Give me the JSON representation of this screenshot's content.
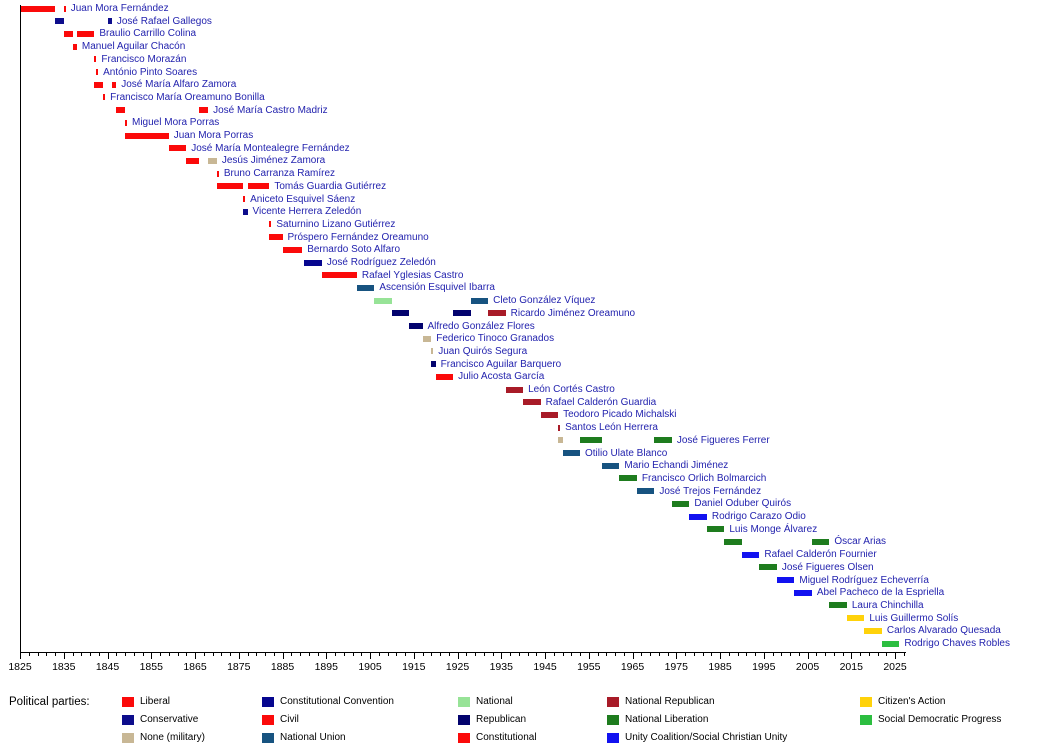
{
  "legend": {
    "title": "Political parties:",
    "columns": [
      [
        "liberal",
        "conservative",
        "none_military"
      ],
      [
        "constitutional_convention",
        "civil",
        "national_union"
      ],
      [
        "national",
        "republican",
        "constitutional"
      ],
      [
        "national_republican",
        "national_liberation",
        "unity_social_christian"
      ],
      [
        "citizens_action",
        "social_democratic_progress"
      ]
    ]
  },
  "parties": {
    "liberal": {
      "label": "Liberal",
      "color": "#fb0a0a"
    },
    "conservative": {
      "label": "Conservative",
      "color": "#0d0d8c"
    },
    "none_military": {
      "label": "None (military)",
      "color": "#c8b795"
    },
    "constitutional_convention": {
      "label": "Constitutional Convention",
      "color": "#06068f"
    },
    "civil": {
      "label": "Civil",
      "color": "#fb0a0a"
    },
    "national_union": {
      "label": "National Union",
      "color": "#175380"
    },
    "national": {
      "label": "National",
      "color": "#97e397"
    },
    "republican": {
      "label": "Republican",
      "color": "#03036e"
    },
    "constitutional": {
      "label": "Constitutional",
      "color": "#fb0a0a"
    },
    "national_republican": {
      "label": "National Republican",
      "color": "#a81b28"
    },
    "national_liberation": {
      "label": "National Liberation",
      "color": "#1e7c1e"
    },
    "unity_social_christian": {
      "label": "Unity Coalition/Social Christian Unity",
      "color": "#1212f0"
    },
    "citizens_action": {
      "label": "Citizen's Action",
      "color": "#ffd20a"
    },
    "social_democratic_progress": {
      "label": "Social Democratic Progress",
      "color": "#2cbe40"
    }
  },
  "chart_data": {
    "type": "timeline",
    "title": "",
    "xlabel": "",
    "axis": {
      "min": 1825,
      "max": 2027,
      "major_step": 10,
      "minor_step": 2
    },
    "tick_labels": [
      "1825",
      "1835",
      "1845",
      "1855",
      "1865",
      "1875",
      "1885",
      "1895",
      "1905",
      "1915",
      "1925",
      "1935",
      "1945",
      "1955",
      "1965",
      "1975",
      "1985",
      "1995",
      "2005",
      "2015",
      "2025"
    ],
    "rows": [
      {
        "name": "Juan Mora Fernández",
        "terms": [
          {
            "party": "liberal",
            "from": 1825,
            "to": 1833
          },
          {
            "party": "liberal",
            "from": 1835,
            "to": 1835.4
          }
        ]
      },
      {
        "name": "José Rafael Gallegos",
        "terms": [
          {
            "party": "conservative",
            "from": 1833,
            "to": 1835
          },
          {
            "party": "conservative",
            "from": 1845,
            "to": 1846
          }
        ]
      },
      {
        "name": "Braulio Carrillo Colina",
        "terms": [
          {
            "party": "liberal",
            "from": 1835,
            "to": 1837
          },
          {
            "party": "liberal",
            "from": 1838,
            "to": 1842
          }
        ]
      },
      {
        "name": "Manuel Aguilar Chacón",
        "terms": [
          {
            "party": "liberal",
            "from": 1837,
            "to": 1838
          }
        ]
      },
      {
        "name": "Francisco Morazán",
        "terms": [
          {
            "party": "liberal",
            "from": 1842,
            "to": 1842.4
          }
        ]
      },
      {
        "name": "António Pinto Soares",
        "terms": [
          {
            "party": "liberal",
            "from": 1842.4,
            "to": 1842.8
          }
        ]
      },
      {
        "name": "José María Alfaro Zamora",
        "terms": [
          {
            "party": "liberal",
            "from": 1842,
            "to": 1844
          },
          {
            "party": "liberal",
            "from": 1846,
            "to": 1847
          }
        ]
      },
      {
        "name": "Francisco María Oreamuno Bonilla",
        "terms": [
          {
            "party": "liberal",
            "from": 1844,
            "to": 1844.4
          }
        ]
      },
      {
        "name": "José María Castro Madriz",
        "terms": [
          {
            "party": "liberal",
            "from": 1847,
            "to": 1849
          },
          {
            "party": "liberal",
            "from": 1866,
            "to": 1868
          }
        ]
      },
      {
        "name": "Miguel Mora Porras",
        "terms": [
          {
            "party": "liberal",
            "from": 1849,
            "to": 1849.4
          }
        ]
      },
      {
        "name": "Juan Mora Porras",
        "terms": [
          {
            "party": "liberal",
            "from": 1849,
            "to": 1859
          }
        ]
      },
      {
        "name": "José María Montealegre Fernández",
        "terms": [
          {
            "party": "liberal",
            "from": 1859,
            "to": 1863
          }
        ]
      },
      {
        "name": "Jesús Jiménez Zamora",
        "terms": [
          {
            "party": "liberal",
            "from": 1863,
            "to": 1866
          },
          {
            "party": "none_military",
            "from": 1868,
            "to": 1870
          }
        ]
      },
      {
        "name": "Bruno Carranza Ramírez",
        "terms": [
          {
            "party": "liberal",
            "from": 1870,
            "to": 1870.4
          }
        ]
      },
      {
        "name": "Tomás Guardia Gutiérrez",
        "terms": [
          {
            "party": "liberal",
            "from": 1870,
            "to": 1876
          },
          {
            "party": "liberal",
            "from": 1877,
            "to": 1882
          }
        ]
      },
      {
        "name": "Aniceto Esquivel Sáenz",
        "terms": [
          {
            "party": "liberal",
            "from": 1876,
            "to": 1876.4
          }
        ]
      },
      {
        "name": "Vicente Herrera Zeledón",
        "terms": [
          {
            "party": "conservative",
            "from": 1876,
            "to": 1877
          }
        ]
      },
      {
        "name": "Saturnino Lizano Gutiérrez",
        "terms": [
          {
            "party": "liberal",
            "from": 1882,
            "to": 1882.4
          }
        ]
      },
      {
        "name": "Próspero Fernández Oreamuno",
        "terms": [
          {
            "party": "liberal",
            "from": 1882,
            "to": 1885
          }
        ]
      },
      {
        "name": "Bernardo Soto Alfaro",
        "terms": [
          {
            "party": "liberal",
            "from": 1885,
            "to": 1889.5
          }
        ]
      },
      {
        "name": "José Rodríguez Zeledón",
        "terms": [
          {
            "party": "constitutional_convention",
            "from": 1890,
            "to": 1894
          }
        ]
      },
      {
        "name": "Rafael Yglesias Castro",
        "terms": [
          {
            "party": "civil",
            "from": 1894,
            "to": 1902
          }
        ]
      },
      {
        "name": "Ascensión Esquivel Ibarra",
        "terms": [
          {
            "party": "national_union",
            "from": 1902,
            "to": 1906
          }
        ]
      },
      {
        "name": "Cleto González Víquez",
        "terms": [
          {
            "party": "national",
            "from": 1906,
            "to": 1910
          },
          {
            "party": "national_union",
            "from": 1928,
            "to": 1932
          }
        ]
      },
      {
        "name": "Ricardo Jiménez Oreamuno",
        "terms": [
          {
            "party": "republican",
            "from": 1910,
            "to": 1914
          },
          {
            "party": "republican",
            "from": 1924,
            "to": 1928
          },
          {
            "party": "national_republican",
            "from": 1932,
            "to": 1936
          }
        ]
      },
      {
        "name": "Alfredo González Flores",
        "terms": [
          {
            "party": "republican",
            "from": 1914,
            "to": 1917
          }
        ]
      },
      {
        "name": "Federico Tinoco Granados",
        "terms": [
          {
            "party": "none_military",
            "from": 1917,
            "to": 1919
          }
        ]
      },
      {
        "name": "Juan Quirós Segura",
        "terms": [
          {
            "party": "none_military",
            "from": 1919,
            "to": 1919.4
          }
        ]
      },
      {
        "name": "Francisco Aguilar Barquero",
        "terms": [
          {
            "party": "republican",
            "from": 1919,
            "to": 1920
          }
        ]
      },
      {
        "name": "Julio Acosta García",
        "terms": [
          {
            "party": "constitutional",
            "from": 1920,
            "to": 1924
          }
        ]
      },
      {
        "name": "León Cortés Castro",
        "terms": [
          {
            "party": "national_republican",
            "from": 1936,
            "to": 1940
          }
        ]
      },
      {
        "name": "Rafael Calderón Guardia",
        "terms": [
          {
            "party": "national_republican",
            "from": 1940,
            "to": 1944
          }
        ]
      },
      {
        "name": "Teodoro Picado Michalski",
        "terms": [
          {
            "party": "national_republican",
            "from": 1944,
            "to": 1948
          }
        ]
      },
      {
        "name": "Santos León Herrera",
        "terms": [
          {
            "party": "national_republican",
            "from": 1948,
            "to": 1948.4
          }
        ]
      },
      {
        "name": "José Figueres Ferrer",
        "terms": [
          {
            "party": "none_military",
            "from": 1948,
            "to": 1949
          },
          {
            "party": "national_liberation",
            "from": 1953,
            "to": 1958
          },
          {
            "party": "national_liberation",
            "from": 1970,
            "to": 1974
          }
        ]
      },
      {
        "name": "Otilio Ulate Blanco",
        "terms": [
          {
            "party": "national_union",
            "from": 1949,
            "to": 1953
          }
        ]
      },
      {
        "name": "Mario Echandi Jiménez",
        "terms": [
          {
            "party": "national_union",
            "from": 1958,
            "to": 1962
          }
        ]
      },
      {
        "name": "Francisco Orlich Bolmarcich",
        "terms": [
          {
            "party": "national_liberation",
            "from": 1962,
            "to": 1966
          }
        ]
      },
      {
        "name": "José Trejos Fernández",
        "terms": [
          {
            "party": "national_union",
            "from": 1966,
            "to": 1970
          }
        ]
      },
      {
        "name": "Daniel Oduber Quirós",
        "terms": [
          {
            "party": "national_liberation",
            "from": 1974,
            "to": 1978
          }
        ]
      },
      {
        "name": "Rodrigo Carazo Odio",
        "terms": [
          {
            "party": "unity_social_christian",
            "from": 1978,
            "to": 1982
          }
        ]
      },
      {
        "name": "Luis Monge Álvarez",
        "terms": [
          {
            "party": "national_liberation",
            "from": 1982,
            "to": 1986
          }
        ]
      },
      {
        "name": "Óscar Arias",
        "terms": [
          {
            "party": "national_liberation",
            "from": 1986,
            "to": 1990
          },
          {
            "party": "national_liberation",
            "from": 2006,
            "to": 2010
          }
        ]
      },
      {
        "name": "Rafael Calderón Fournier",
        "terms": [
          {
            "party": "unity_social_christian",
            "from": 1990,
            "to": 1994
          }
        ]
      },
      {
        "name": "José Figueres Olsen",
        "terms": [
          {
            "party": "national_liberation",
            "from": 1994,
            "to": 1998
          }
        ]
      },
      {
        "name": "Miguel Rodríguez Echeverría",
        "terms": [
          {
            "party": "unity_social_christian",
            "from": 1998,
            "to": 2002
          }
        ]
      },
      {
        "name": "Abel Pacheco de la Espriella",
        "terms": [
          {
            "party": "unity_social_christian",
            "from": 2002,
            "to": 2006
          }
        ]
      },
      {
        "name": "Laura Chinchilla",
        "terms": [
          {
            "party": "national_liberation",
            "from": 2010,
            "to": 2014
          }
        ]
      },
      {
        "name": "Luis Guillermo Solís",
        "terms": [
          {
            "party": "citizens_action",
            "from": 2014,
            "to": 2018
          }
        ]
      },
      {
        "name": "Carlos Alvarado Quesada",
        "terms": [
          {
            "party": "citizens_action",
            "from": 2018,
            "to": 2022
          }
        ]
      },
      {
        "name": "Rodrigo Chaves Robles",
        "terms": [
          {
            "party": "social_democratic_progress",
            "from": 2022,
            "to": 2026
          }
        ]
      }
    ]
  }
}
